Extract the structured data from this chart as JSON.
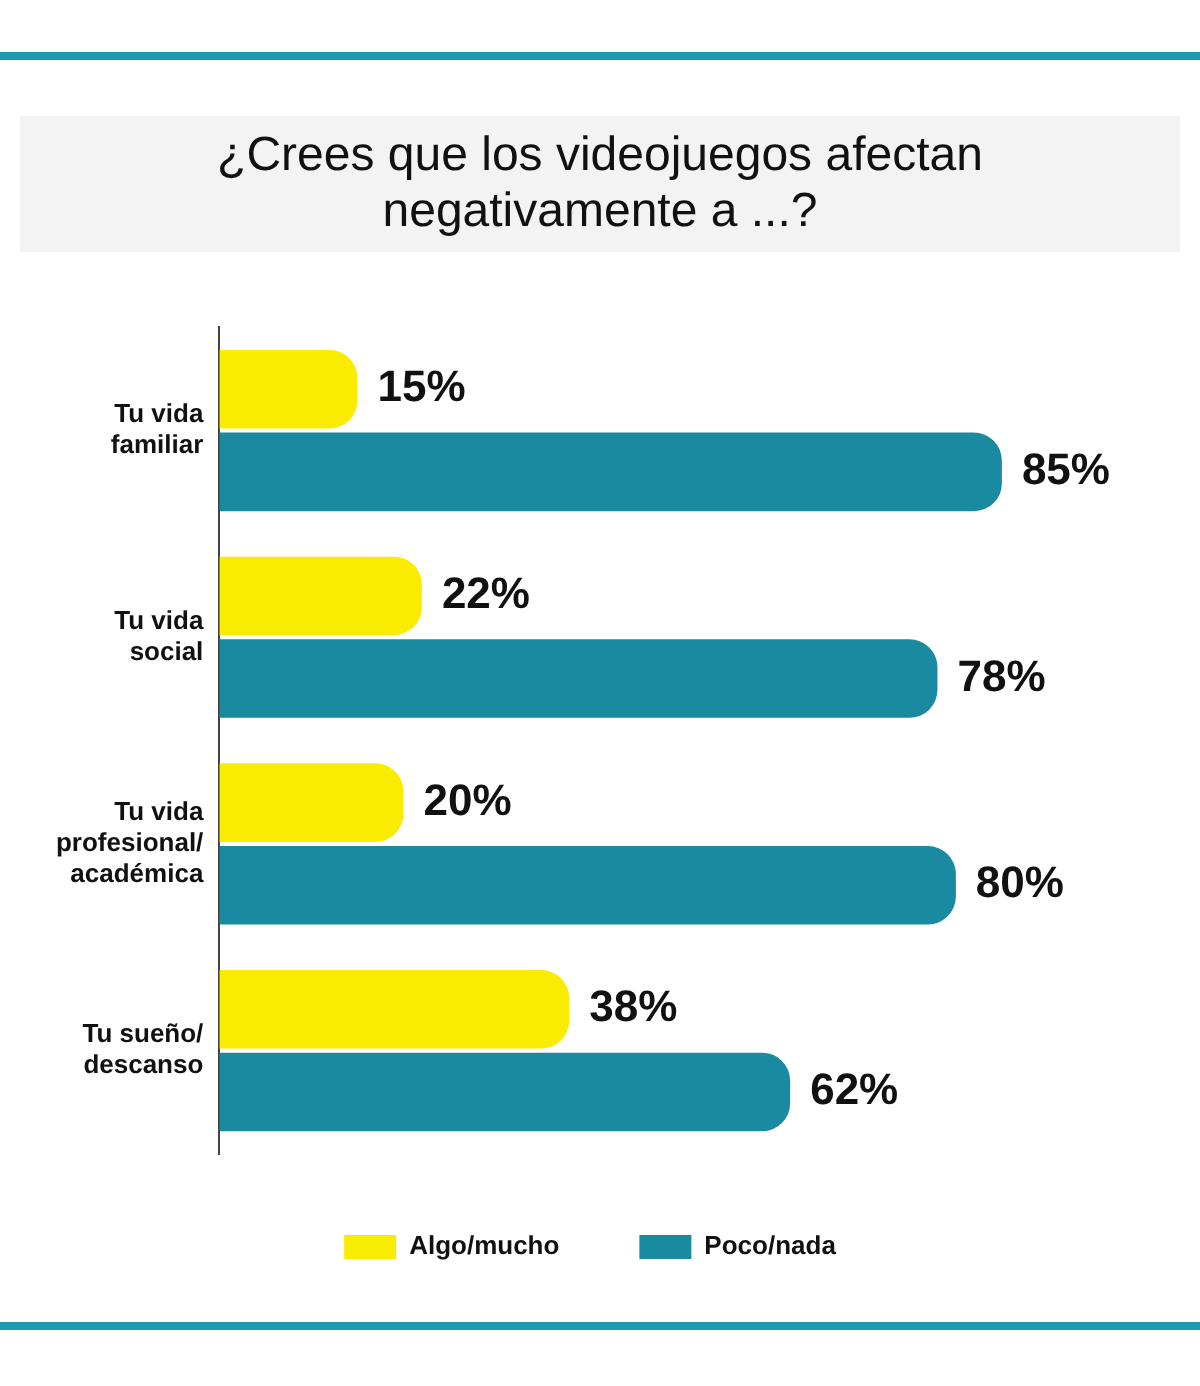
{
  "chart_data": {
    "type": "bar",
    "orientation": "horizontal",
    "title": "¿Crees que los videojuegos afectan negativamente a ...?",
    "categories": [
      "Tu vida\nfamiliar",
      "Tu vida\nsocial",
      "Tu vida\nprofesional/\nacadémica",
      "Tu sueño/\ndescanso"
    ],
    "series": [
      {
        "name": "Algo/mucho",
        "color": "#f9ec00",
        "values": [
          15,
          22,
          20,
          38
        ],
        "value_labels": [
          "15%",
          "22%",
          "20%",
          "38%"
        ]
      },
      {
        "name": "Poco/nada",
        "color": "#1a8aa0",
        "values": [
          85,
          78,
          80,
          62
        ],
        "value_labels": [
          "85%",
          "78%",
          "80%",
          "62%"
        ]
      }
    ],
    "legend": "bottom",
    "grid": false
  }
}
